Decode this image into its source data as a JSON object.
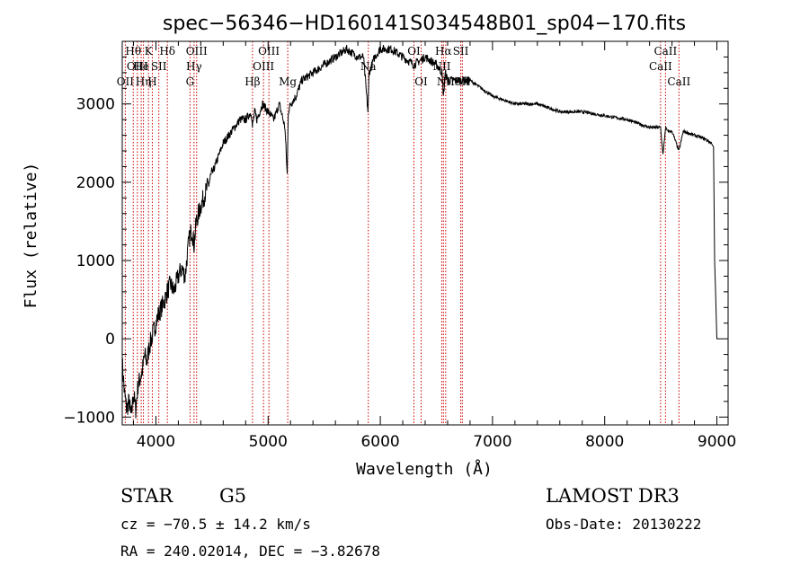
{
  "chart_data": {
    "type": "line",
    "title": "spec−56346−HD160141S034548B01_sp04−170.fits",
    "xlabel": "Wavelength (Å)",
    "ylabel": "Flux (relative)",
    "xlim": [
      3700,
      9100
    ],
    "ylim": [
      -1100,
      3800
    ],
    "xticks": [
      4000,
      5000,
      6000,
      7000,
      8000,
      9000
    ],
    "xtick_labels": [
      "4000",
      "5000",
      "6000",
      "7000",
      "8000",
      "9000"
    ],
    "yticks": [
      -1000,
      0,
      1000,
      2000,
      3000
    ],
    "ytick_labels": [
      "−1000",
      "0",
      "1000",
      "2000",
      "3000"
    ],
    "series": [
      {
        "name": "flux",
        "x": [
          3700,
          3720,
          3740,
          3760,
          3780,
          3800,
          3820,
          3840,
          3860,
          3880,
          3900,
          3920,
          3940,
          3960,
          3980,
          4000,
          4020,
          4050,
          4080,
          4100,
          4130,
          4160,
          4200,
          4230,
          4260,
          4290,
          4300,
          4320,
          4340,
          4360,
          4380,
          4400,
          4450,
          4500,
          4550,
          4600,
          4650,
          4700,
          4750,
          4800,
          4850,
          4860,
          4880,
          4900,
          4950,
          5000,
          5050,
          5100,
          5150,
          5170,
          5180,
          5200,
          5250,
          5300,
          5400,
          5500,
          5600,
          5700,
          5800,
          5850,
          5890,
          5900,
          5950,
          6000,
          6050,
          6100,
          6200,
          6300,
          6400,
          6500,
          6550,
          6563,
          6580,
          6600,
          6700,
          6800,
          6900,
          7000,
          7200,
          7400,
          7600,
          7800,
          8000,
          8200,
          8400,
          8498,
          8520,
          8542,
          8560,
          8600,
          8662,
          8700,
          8800,
          8900,
          8950,
          8970,
          8980,
          8990,
          9000,
          9020
        ],
        "y": [
          -300,
          -700,
          -900,
          -800,
          -1000,
          -700,
          -900,
          -600,
          -500,
          -400,
          -200,
          -300,
          -100,
          0,
          100,
          200,
          300,
          400,
          500,
          600,
          700,
          600,
          800,
          900,
          800,
          1200,
          1300,
          1400,
          1200,
          1500,
          1600,
          1700,
          1900,
          2100,
          2300,
          2500,
          2600,
          2700,
          2800,
          2800,
          2900,
          2700,
          2900,
          2800,
          3000,
          2900,
          2800,
          3000,
          2700,
          2100,
          2900,
          3000,
          3100,
          3300,
          3400,
          3500,
          3600,
          3700,
          3600,
          3600,
          2900,
          3400,
          3600,
          3700,
          3700,
          3700,
          3600,
          3500,
          3600,
          3500,
          3400,
          3100,
          3400,
          3300,
          3300,
          3300,
          3200,
          3100,
          3000,
          3000,
          2900,
          2900,
          2850,
          2800,
          2700,
          2700,
          2350,
          2700,
          2650,
          2650,
          2400,
          2650,
          2600,
          2550,
          2500,
          2450,
          1000,
          500,
          0,
          0
        ]
      }
    ],
    "emission_lines": [
      {
        "wavelength": 3727,
        "label": "OII",
        "row": 2
      },
      {
        "wavelength": 3798,
        "label": "Hθ",
        "row": 0
      },
      {
        "wavelength": 3835,
        "label": "OIII",
        "row": 1
      },
      {
        "wavelength": 3869,
        "label": "He",
        "row": 1
      },
      {
        "wavelength": 3889,
        "label": "Hη",
        "row": 2
      },
      {
        "wavelength": 3934,
        "label": "K",
        "row": 0
      },
      {
        "wavelength": 3968,
        "label": "H",
        "row": 2
      },
      {
        "wavelength": 4026,
        "label": "SII",
        "row": 1
      },
      {
        "wavelength": 4102,
        "label": "Hδ",
        "row": 0
      },
      {
        "wavelength": 4304,
        "label": "G",
        "row": 2
      },
      {
        "wavelength": 4340,
        "label": "Hγ",
        "row": 1
      },
      {
        "wavelength": 4363,
        "label": "OIII",
        "row": 0
      },
      {
        "wavelength": 4861,
        "label": "Hβ",
        "row": 2
      },
      {
        "wavelength": 4959,
        "label": "OIII",
        "row": 1
      },
      {
        "wavelength": 5007,
        "label": "OIII",
        "row": 0
      },
      {
        "wavelength": 5175,
        "label": "Mg",
        "row": 2
      },
      {
        "wavelength": 5893,
        "label": "Na",
        "row": 1
      },
      {
        "wavelength": 6300,
        "label": "OI",
        "row": 0
      },
      {
        "wavelength": 6364,
        "label": "OI",
        "row": 2
      },
      {
        "wavelength": 6548,
        "label": "NII",
        "row": 1
      },
      {
        "wavelength": 6563,
        "label": "Hα",
        "row": 0
      },
      {
        "wavelength": 6583,
        "label": "NII",
        "row": 2
      },
      {
        "wavelength": 6717,
        "label": "SII",
        "row": 0
      },
      {
        "wavelength": 6731,
        "label": "SII",
        "row": 2
      },
      {
        "wavelength": 8498,
        "label": "CaII",
        "row": 1
      },
      {
        "wavelength": 8542,
        "label": "CaII",
        "row": 0
      },
      {
        "wavelength": 8662,
        "label": "CaII",
        "row": 2
      }
    ]
  },
  "info": {
    "class": "STAR",
    "subclass": "G5",
    "survey": "LAMOST DR3",
    "cz": "cz = −70.5 ± 14.2 km/s",
    "obs_date": "Obs-Date: 20130222",
    "coords": "RA = 240.02014, DEC =  −3.82678"
  },
  "colors": {
    "spectrum": "#000000",
    "emission_line": "#cc0000",
    "axis": "#000000",
    "background": "#ffffff"
  }
}
